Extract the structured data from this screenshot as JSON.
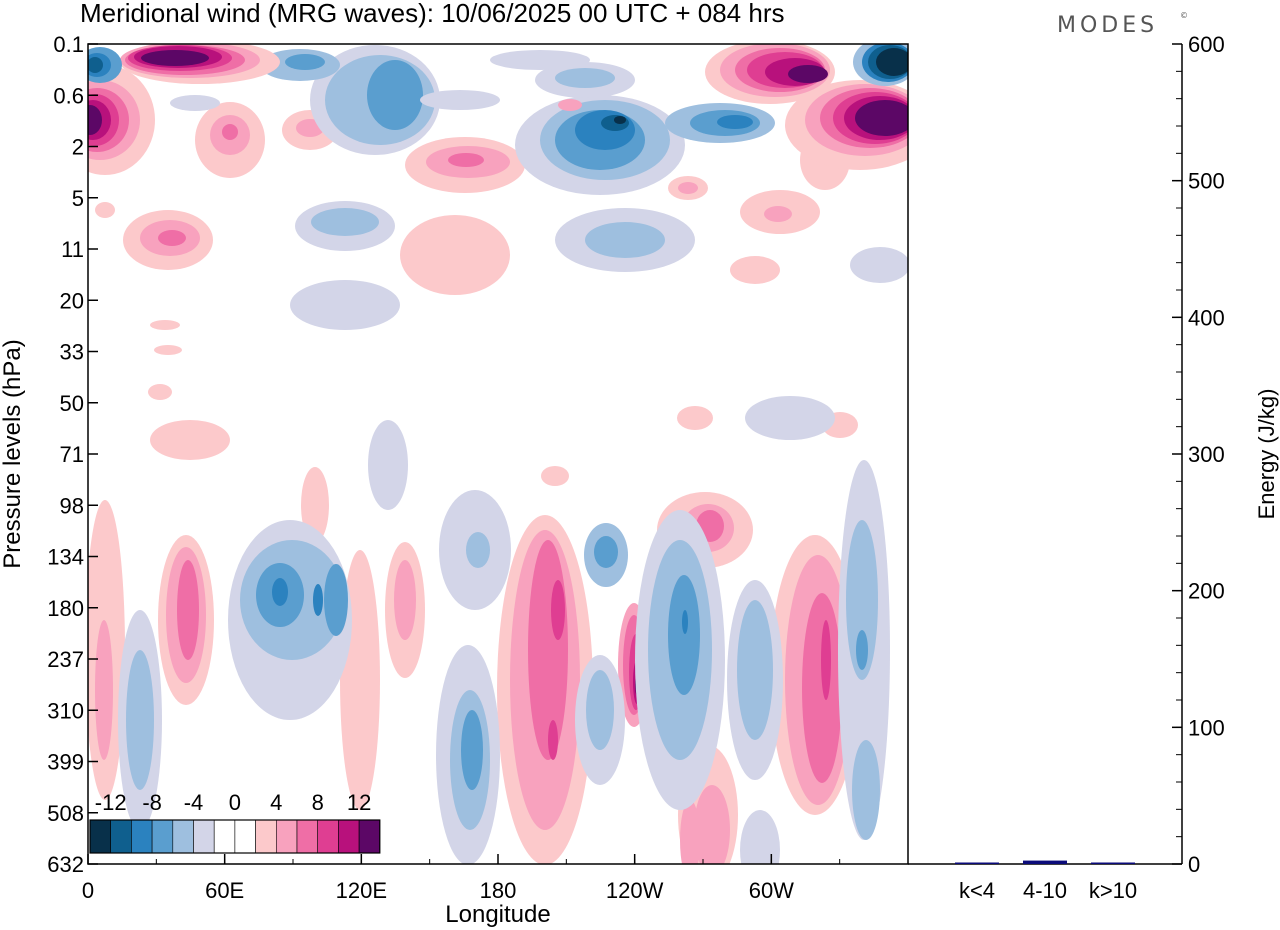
{
  "header": {
    "title": "Meridional wind (MRG waves):  10/06/2025  00 UTC  + 084 hrs",
    "logo_text": "MODES",
    "logo_mark": "©"
  },
  "chart_data": [
    {
      "type": "heatmap",
      "title": "Meridional wind (MRG waves):  10/06/2025  00 UTC  + 084 hrs",
      "xlabel": "Longitude",
      "ylabel": "Pressure levels (hPa)",
      "x_ticks": [
        "0",
        "60E",
        "120E",
        "180",
        "120W",
        "60W"
      ],
      "x_tick_values": [
        0,
        60,
        120,
        180,
        240,
        300
      ],
      "xlim": [
        0,
        360
      ],
      "y_ticks": [
        "0.1",
        "0.6",
        "2",
        "5",
        "11",
        "20",
        "33",
        "50",
        "71",
        "98",
        "134",
        "180",
        "237",
        "310",
        "399",
        "508",
        "632"
      ],
      "y_scale": "sigma/pressure levels (non-linear, top = 0.1 hPa)",
      "colorbar": {
        "labels": [
          "-12",
          "-8",
          "-4",
          "0",
          "4",
          "8",
          "12"
        ],
        "colors": [
          "#08304a",
          "#0f5f8e",
          "#2b82bf",
          "#5a9ecf",
          "#9ebfdf",
          "#d3d5e8",
          "#ffffff",
          "#ffffff",
          "#fcc9cb",
          "#f8a2be",
          "#ef6ea6",
          "#df3e92",
          "#b8117c",
          "#5c0766"
        ]
      },
      "features": [
        {
          "sign": "positive",
          "lon": 200,
          "pressure_range": [
            134,
            632
          ],
          "peak": 8
        },
        {
          "sign": "positive",
          "lon": 240,
          "pressure_range": [
            180,
            310
          ],
          "peak": 12
        },
        {
          "sign": "positive",
          "lon": 315,
          "pressure_range": [
            134,
            508
          ],
          "peak": 8
        },
        {
          "sign": "negative",
          "lon": 85,
          "pressure_range": [
            134,
            310
          ],
          "peak": -8
        },
        {
          "sign": "negative",
          "lon": 165,
          "pressure_range": [
            310,
            632
          ],
          "peak": -8
        },
        {
          "sign": "negative",
          "lon": 260,
          "pressure_range": [
            180,
            508
          ],
          "peak": -8
        },
        {
          "sign": "positive",
          "lon": 15,
          "pressure_range": [
            0.6,
            2
          ],
          "peak": 12
        },
        {
          "sign": "positive",
          "lon": 340,
          "pressure_range": [
            0.6,
            2
          ],
          "peak": 12
        },
        {
          "sign": "negative",
          "lon": 240,
          "pressure_range": [
            0.6,
            5
          ],
          "peak": -12
        },
        {
          "sign": "positive",
          "lon": 50,
          "pressure_range": [
            0.1,
            0.6
          ],
          "peak": 12
        }
      ]
    },
    {
      "type": "bar",
      "ylabel": "Energy (J/kg)",
      "ylim": [
        0,
        600
      ],
      "y_ticks": [
        "0",
        "100",
        "200",
        "300",
        "400",
        "500",
        "600"
      ],
      "categories": [
        "k<4",
        "4-10",
        "k>10"
      ],
      "values": [
        0.3,
        2.5,
        0.1
      ],
      "bar_color": "#0b0b7a"
    }
  ]
}
